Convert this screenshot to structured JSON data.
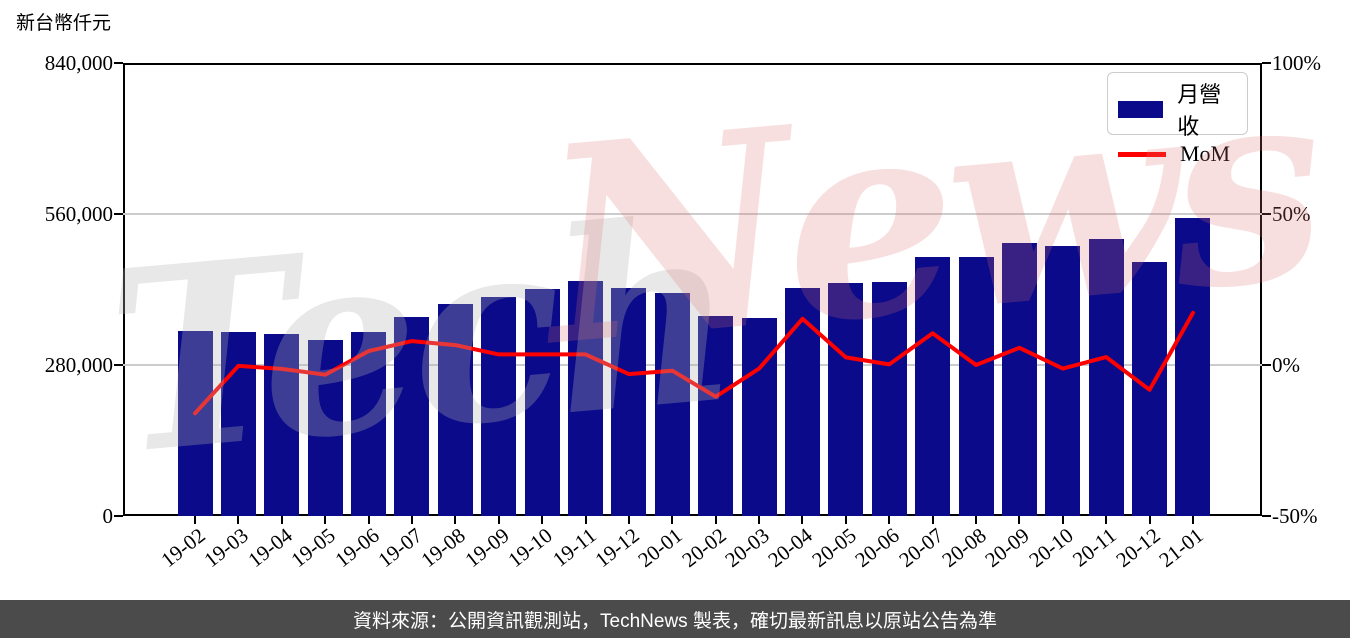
{
  "header": {
    "y_axis_title": "新台幣仟元"
  },
  "legend": {
    "items": [
      {
        "label": "月營收",
        "type": "bar"
      },
      {
        "label": "MoM",
        "type": "line"
      }
    ]
  },
  "watermark": {
    "part1": "Tech",
    "part2": "News"
  },
  "footer": {
    "text": "資料來源：公開資訊觀測站，TechNews 製表，確切最新訊息以原站公告為準"
  },
  "colors": {
    "bar": "#0a0a8a",
    "line": "#ff0000",
    "grid": "#cccccc",
    "axis": "#000000",
    "legend_border": "#cccccc",
    "footer_bg": "#4b4b4b",
    "footer_text": "#ffffff",
    "watermark_gray": "#b4b4b4",
    "watermark_pink": "#e07272"
  },
  "chart_data": {
    "type": "bar",
    "title": "",
    "xlabel": "",
    "ylabel": "新台幣仟元",
    "grid": "horizontal",
    "legend_position": "top-right",
    "categories": [
      "19-02",
      "19-03",
      "19-04",
      "19-05",
      "19-06",
      "19-07",
      "19-08",
      "19-09",
      "19-10",
      "19-11",
      "19-12",
      "20-01",
      "20-02",
      "20-03",
      "20-04",
      "20-05",
      "20-06",
      "20-07",
      "20-08",
      "20-09",
      "20-10",
      "20-11",
      "20-12",
      "21-01"
    ],
    "series": [
      {
        "name": "月營收",
        "type": "bar",
        "yaxis": "left",
        "values": [
          342700,
          341700,
          337300,
          326500,
          341500,
          368500,
          392800,
          406500,
          420700,
          435400,
          422300,
          414300,
          370800,
          366400,
          422400,
          432600,
          433500,
          479500,
          479500,
          506800,
          500700,
          513700,
          471600,
          553200
        ]
      },
      {
        "name": "MoM",
        "type": "line",
        "yaxis": "right",
        "values_percent": [
          -16.0,
          -0.3,
          -1.3,
          -3.2,
          4.6,
          7.9,
          6.6,
          3.5,
          3.5,
          3.5,
          -3.0,
          -1.9,
          -10.5,
          -1.2,
          15.3,
          2.5,
          0.2,
          10.5,
          0.0,
          5.7,
          -1.2,
          2.6,
          -8.2,
          17.3
        ]
      }
    ],
    "left_axis": {
      "title": "新台幣仟元",
      "range": [
        0,
        840000
      ],
      "tick_values": [
        0,
        280000,
        560000,
        840000
      ],
      "tick_labels": [
        "0",
        "280,000",
        "560,000",
        "840,000"
      ]
    },
    "right_axis": {
      "range": [
        -50,
        100
      ],
      "tick_values": [
        -50,
        0,
        50,
        100
      ],
      "tick_labels": [
        "-50%",
        "0%",
        "50%",
        "100%"
      ]
    }
  }
}
